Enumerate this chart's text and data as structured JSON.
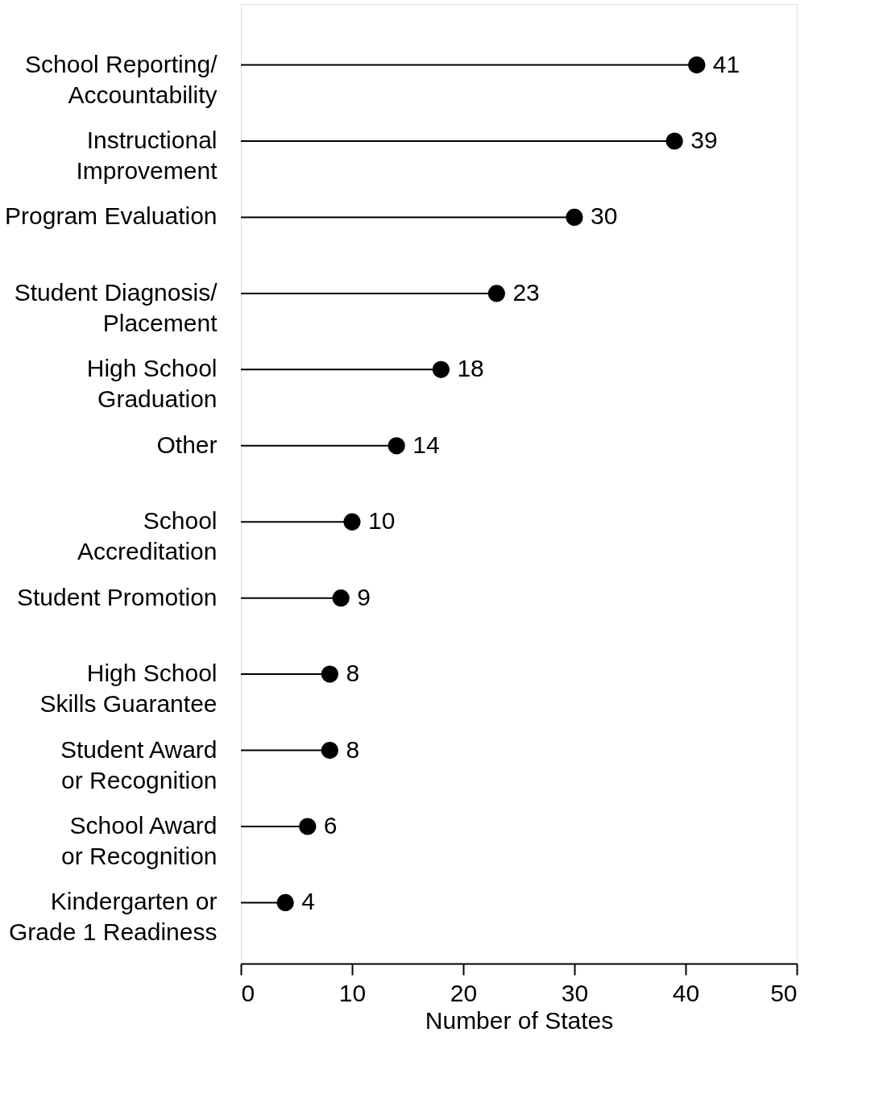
{
  "chart_data": {
    "type": "lollipop",
    "orientation": "horizontal",
    "categories": [
      "School Reporting/\nAccountability",
      "Instructional\nImprovement",
      "Program Evaluation",
      "Student Diagnosis/\nPlacement",
      "High School\nGraduation",
      "Other",
      "School\nAccreditation",
      "Student Promotion",
      "High School\nSkills Guarantee",
      "Student Award\nor Recognition",
      "School Award\nor Recognition",
      "Kindergarten or\nGrade 1 Readiness"
    ],
    "values": [
      41,
      39,
      30,
      23,
      18,
      14,
      10,
      9,
      8,
      8,
      6,
      4
    ],
    "color": "#000000",
    "marker": "circle",
    "data_labels": true,
    "xlim": [
      0,
      50
    ],
    "xticks": [
      0,
      10,
      20,
      30,
      40,
      50
    ],
    "xlabel": "Number of States",
    "grid": false
  }
}
